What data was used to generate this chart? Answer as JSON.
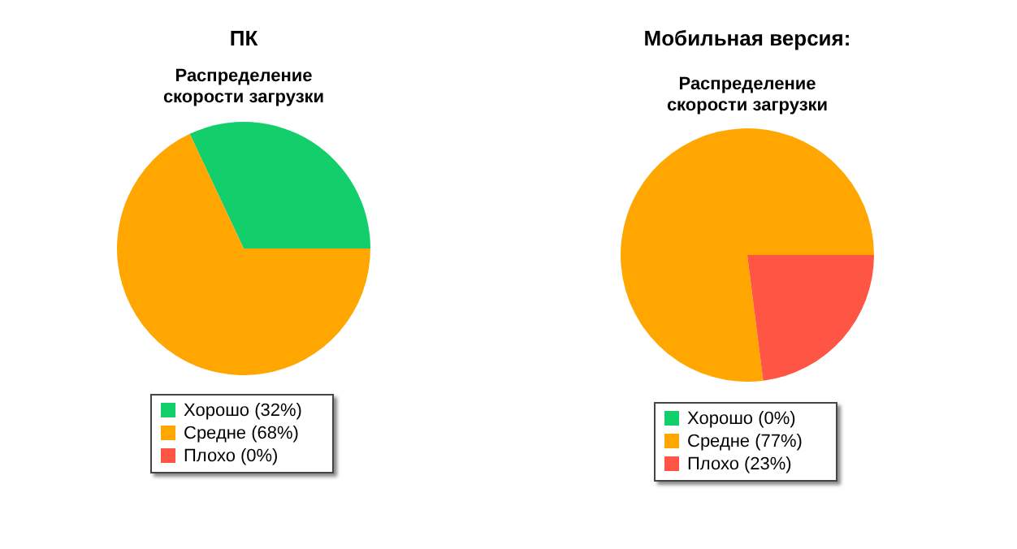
{
  "chart_data": [
    {
      "type": "pie",
      "title": "ПК",
      "subtitle": "Распределение\nскорости загрузки",
      "categories": [
        "Хорошо (32%)",
        "Средне (68%)",
        "Плохо (0%)"
      ],
      "values": [
        32,
        68,
        0
      ],
      "colors": [
        "#12cf6c",
        "#ffa600",
        "#ff5544"
      ],
      "legend": "bottom"
    },
    {
      "type": "pie",
      "title": "Мобильная версия:",
      "subtitle": "Распределение\nскорости загрузки",
      "categories": [
        "Хорошо (0%)",
        "Средне (77%)",
        "Плохо (23%)"
      ],
      "values": [
        0,
        77,
        23
      ],
      "colors": [
        "#12cf6c",
        "#ffa600",
        "#ff5544"
      ],
      "legend": "bottom"
    }
  ]
}
